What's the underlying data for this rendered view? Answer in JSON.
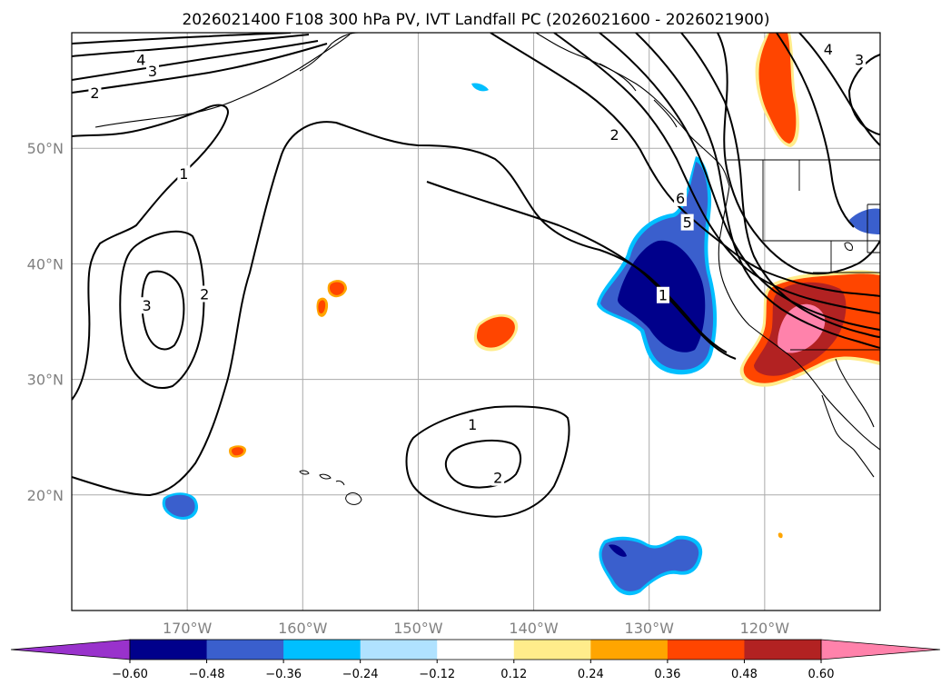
{
  "title": "2026021400 F108 300 hPa PV, IVT Landfall PC (2026021600 - 2026021900)",
  "chart_data": {
    "type": "map",
    "title": "2026021400 F108 300 hPa PV, IVT Landfall PC (2026021600 - 2026021900)",
    "projection": "PlateCarree",
    "extent": {
      "lon": [
        -180,
        -110
      ],
      "lat": [
        10,
        60
      ]
    },
    "lon_ticks": [
      {
        "value": -170,
        "label": "170°W"
      },
      {
        "value": -160,
        "label": "160°W"
      },
      {
        "value": -150,
        "label": "150°W"
      },
      {
        "value": -140,
        "label": "140°W"
      },
      {
        "value": -130,
        "label": "130°W"
      },
      {
        "value": -120,
        "label": "120°W"
      }
    ],
    "lat_ticks": [
      {
        "value": 50,
        "label": "50°N"
      },
      {
        "value": 40,
        "label": "40°N"
      },
      {
        "value": 30,
        "label": "30°N"
      },
      {
        "value": 20,
        "label": "20°N"
      }
    ],
    "gridlines": true,
    "colorbar": {
      "orientation": "horizontal",
      "extend": "both",
      "levels": [
        -0.72,
        -0.6,
        -0.48,
        -0.36,
        -0.24,
        -0.12,
        0.12,
        0.24,
        0.36,
        0.48,
        0.6,
        0.72
      ],
      "colors": [
        "#9932cc",
        "#00008b",
        "#3a5fcd",
        "#00bfff",
        "#b0e2ff",
        "#ffffff",
        "#ffec8b",
        "#ffa500",
        "#ff4500",
        "#b22222",
        "#ff82ab"
      ],
      "ticks": [
        {
          "value": -0.6,
          "label": "−0.60"
        },
        {
          "value": -0.48,
          "label": "−0.48"
        },
        {
          "value": -0.36,
          "label": "−0.36"
        },
        {
          "value": -0.24,
          "label": "−0.24"
        },
        {
          "value": -0.12,
          "label": "−0.12"
        },
        {
          "value": 0.12,
          "label": "0.12"
        },
        {
          "value": 0.24,
          "label": "0.24"
        },
        {
          "value": 0.36,
          "label": "0.36"
        },
        {
          "value": 0.48,
          "label": "0.48"
        },
        {
          "value": 0.6,
          "label": "0.60"
        }
      ]
    },
    "contour_labels": [
      {
        "text": "4",
        "lon": -174,
        "lat": 57.7
      },
      {
        "text": "3",
        "lon": -173,
        "lat": 56.7
      },
      {
        "text": "2",
        "lon": -178,
        "lat": 54.8
      },
      {
        "text": "1",
        "lon": -170.3,
        "lat": 47.8
      },
      {
        "text": "3",
        "lon": -173.5,
        "lat": 36.4
      },
      {
        "text": "2",
        "lon": -168.5,
        "lat": 37.4
      },
      {
        "text": "1",
        "lon": -145.3,
        "lat": 26.1
      },
      {
        "text": "2",
        "lon": -143.1,
        "lat": 21.5
      },
      {
        "text": "2",
        "lon": -133,
        "lat": 51.2
      },
      {
        "text": "1",
        "lon": -128.8,
        "lat": 37.3
      },
      {
        "text": "6",
        "lon": -127.3,
        "lat": 45.7
      },
      {
        "text": "5",
        "lon": -126.7,
        "lat": 43.6
      },
      {
        "text": "4",
        "lon": -114.5,
        "lat": 58.6
      },
      {
        "text": "3",
        "lon": -111.8,
        "lat": 57.7
      }
    ]
  }
}
